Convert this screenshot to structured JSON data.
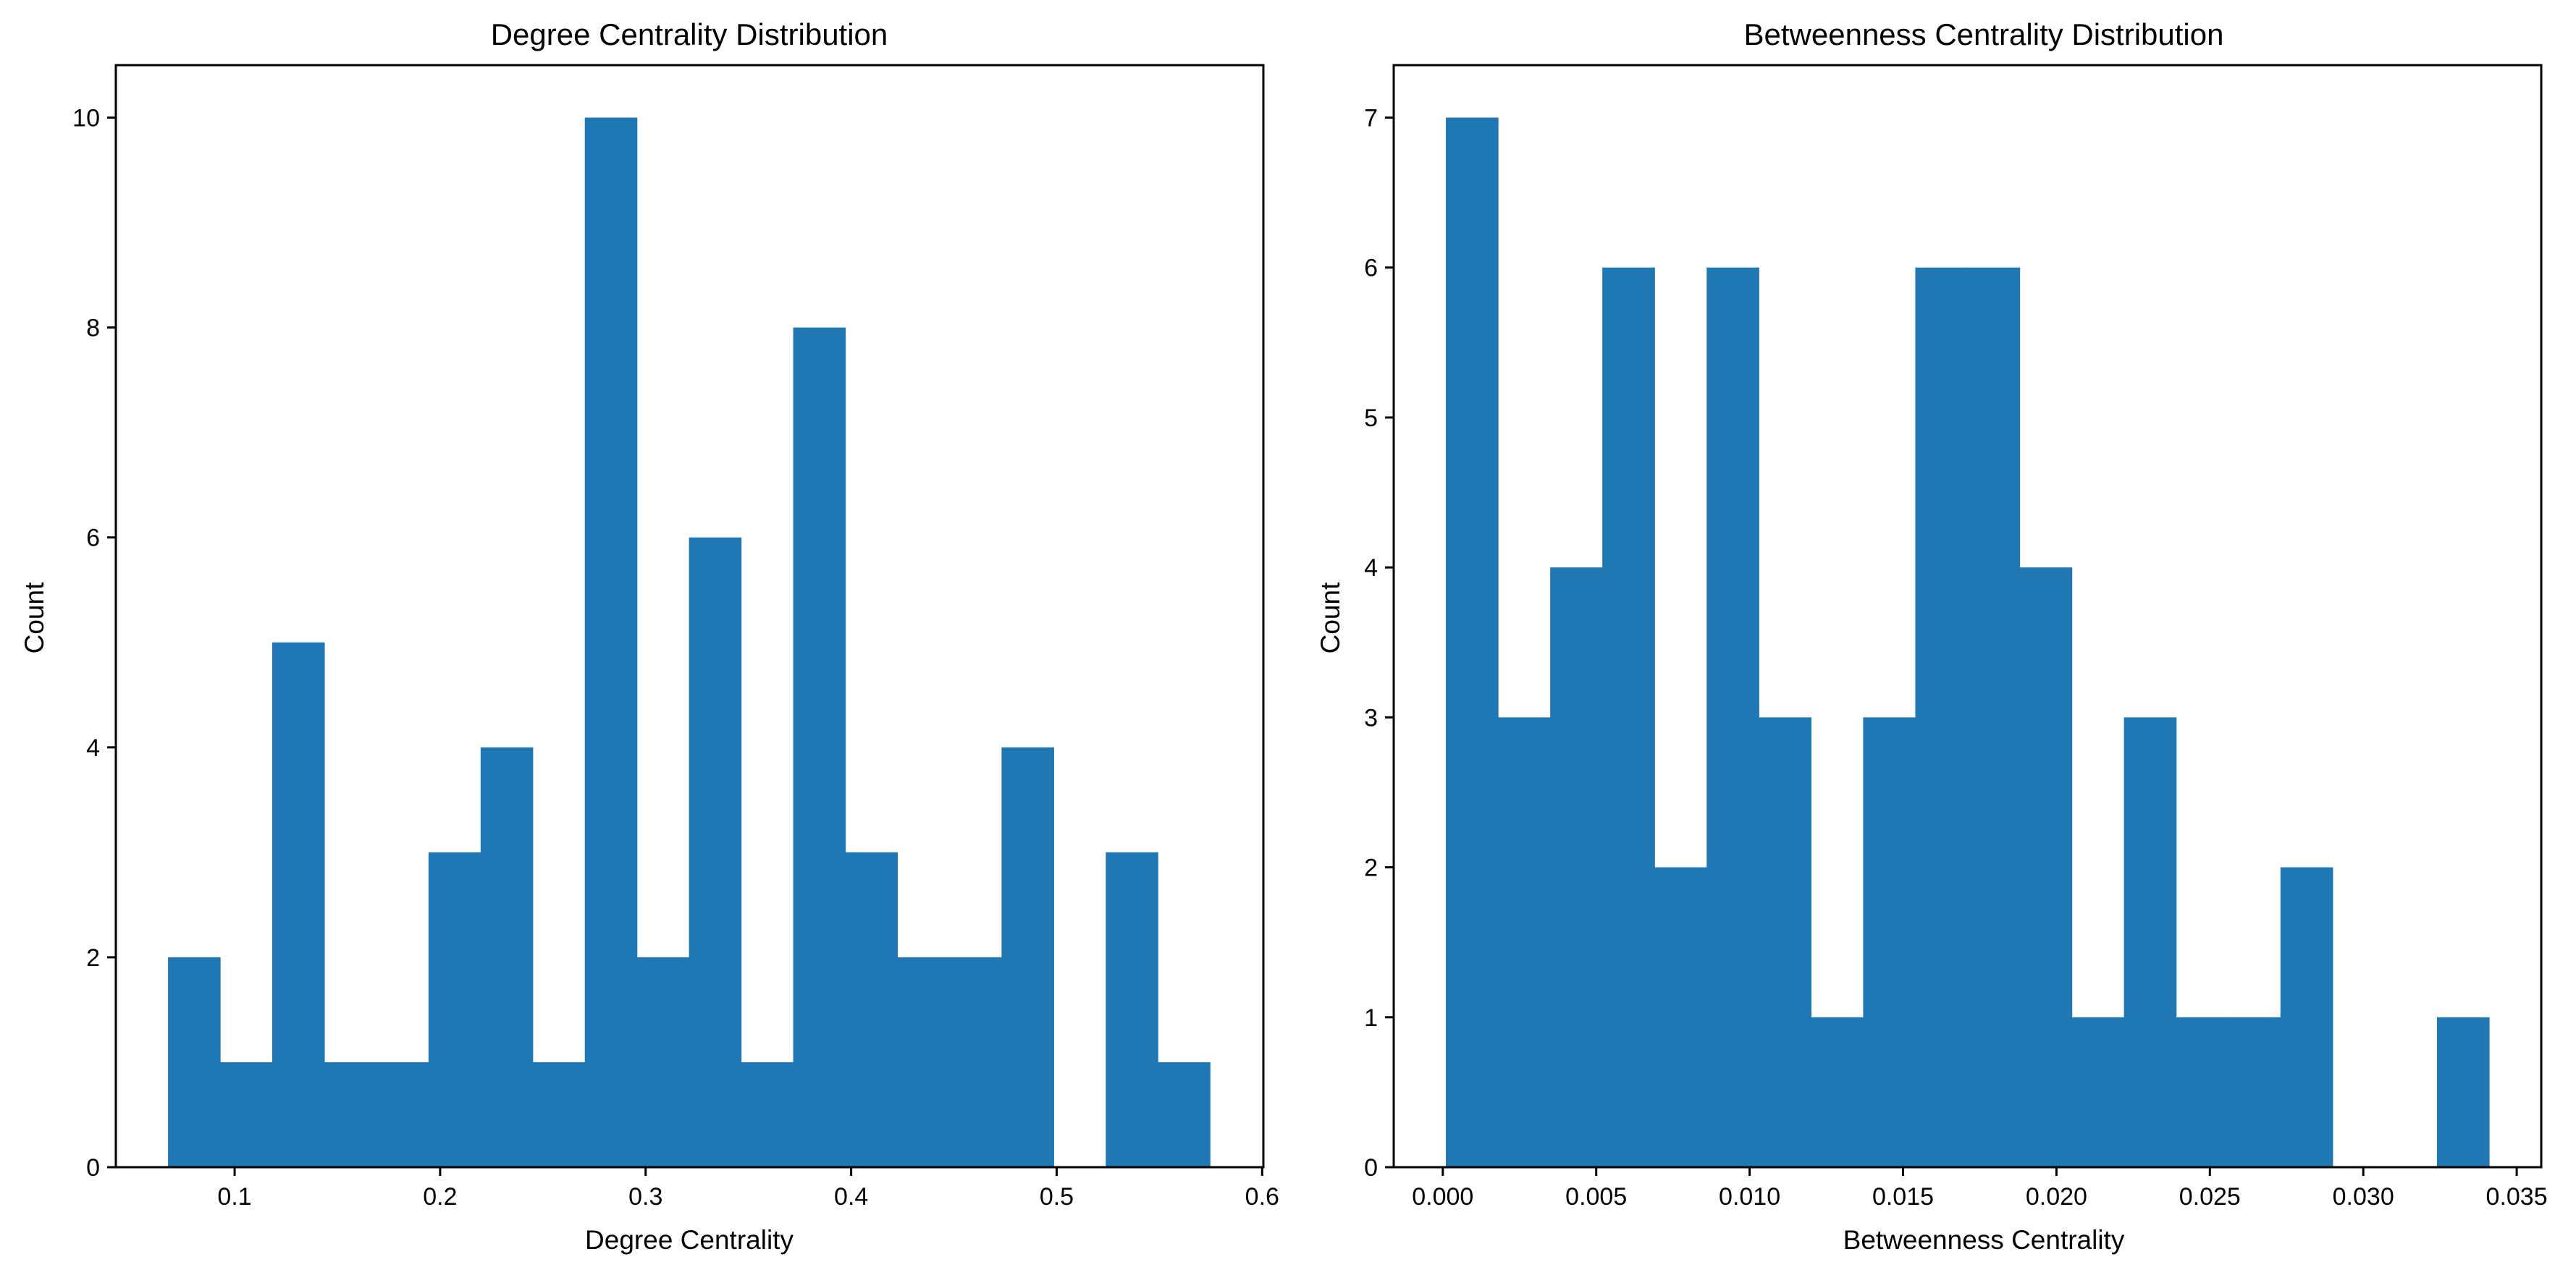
{
  "chart_data": [
    {
      "type": "bar",
      "title": "Degree Centrality Distribution",
      "xlabel": "Degree Centrality",
      "ylabel": "Count",
      "bins": {
        "start": 0.0676,
        "width": 0.02535,
        "count": 20
      },
      "values": [
        2,
        1,
        5,
        1,
        1,
        3,
        4,
        1,
        10,
        2,
        6,
        1,
        8,
        3,
        2,
        2,
        4,
        0,
        3,
        1
      ],
      "xlim": [
        0.0422,
        0.6006
      ],
      "ylim": [
        0,
        10.5
      ],
      "xticks": [
        0.1,
        0.2,
        0.3,
        0.4,
        0.5,
        0.6
      ],
      "xtick_labels": [
        "0.1",
        "0.2",
        "0.3",
        "0.4",
        "0.5",
        "0.6"
      ],
      "yticks": [
        0,
        2,
        4,
        6,
        8,
        10
      ],
      "ytick_labels": [
        "0",
        "2",
        "4",
        "6",
        "8",
        "10"
      ],
      "color": "#1f77b4",
      "grid": false,
      "legend": "none"
    },
    {
      "type": "bar",
      "title": "Betweenness Centrality Distribution",
      "xlabel": "Betweenness Centrality",
      "ylabel": "Count",
      "bins": {
        "start": 0.0001,
        "width": 0.0017,
        "count": 20
      },
      "values": [
        7,
        3,
        4,
        6,
        2,
        6,
        3,
        1,
        3,
        6,
        6,
        4,
        1,
        3,
        1,
        1,
        2,
        0,
        0,
        1
      ],
      "xlim": [
        -0.0016,
        0.0358
      ],
      "ylim": [
        0,
        7.35
      ],
      "xticks": [
        0.0,
        0.005,
        0.01,
        0.015,
        0.02,
        0.025,
        0.03,
        0.035
      ],
      "xtick_labels": [
        "0.000",
        "0.005",
        "0.010",
        "0.015",
        "0.020",
        "0.025",
        "0.030",
        "0.035"
      ],
      "yticks": [
        0,
        1,
        2,
        3,
        4,
        5,
        6,
        7
      ],
      "ytick_labels": [
        "0",
        "1",
        "2",
        "3",
        "4",
        "5",
        "6",
        "7"
      ],
      "color": "#1f77b4",
      "grid": false,
      "legend": "none"
    }
  ]
}
